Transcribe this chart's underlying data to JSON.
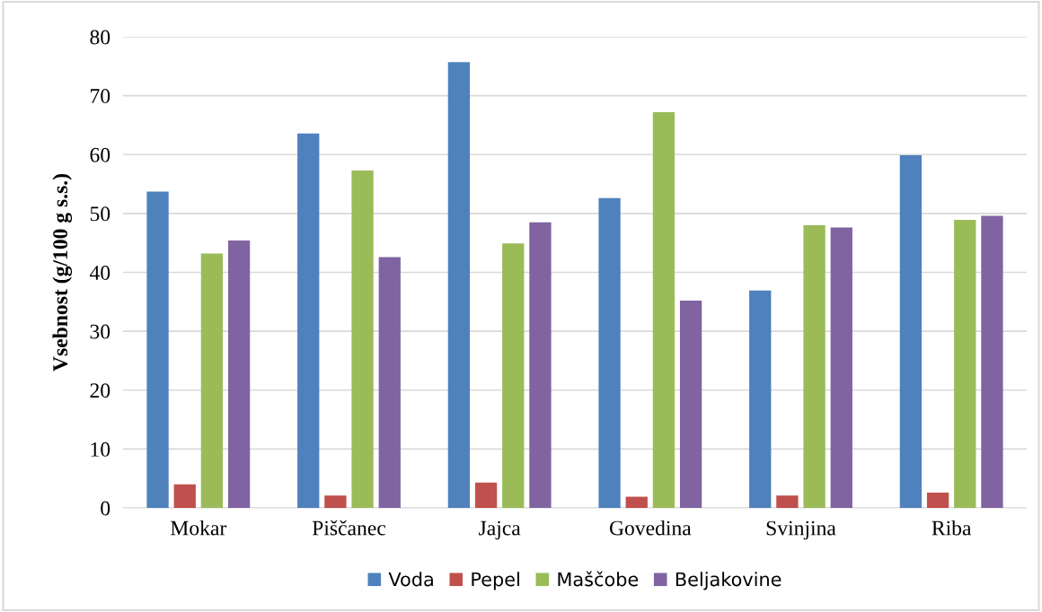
{
  "chart_data": {
    "type": "bar",
    "ylabel": "Vsebnost (g/100 g s.s.)",
    "categories": [
      "Mokar",
      "Piščanec",
      "Jajca",
      "Govedina",
      "Svinjina",
      "Riba"
    ],
    "series": [
      {
        "name": "Voda",
        "color": "#4f81bd",
        "values": [
          53.7,
          63.6,
          75.7,
          52.6,
          36.9,
          59.9
        ]
      },
      {
        "name": "Pepel",
        "color": "#c0504d",
        "values": [
          4.0,
          2.1,
          4.3,
          1.9,
          2.1,
          2.6
        ]
      },
      {
        "name": "Maščobe",
        "color": "#9bbb59",
        "values": [
          43.2,
          57.3,
          44.9,
          67.2,
          48.0,
          48.9
        ]
      },
      {
        "name": "Beljakovine",
        "color": "#8064a2",
        "values": [
          45.4,
          42.6,
          48.5,
          35.2,
          47.6,
          49.6
        ]
      }
    ],
    "ylim": [
      0,
      80
    ],
    "yticks": [
      0,
      10,
      20,
      30,
      40,
      50,
      60,
      70,
      80
    ],
    "grid": "y",
    "legend": "bottom"
  }
}
